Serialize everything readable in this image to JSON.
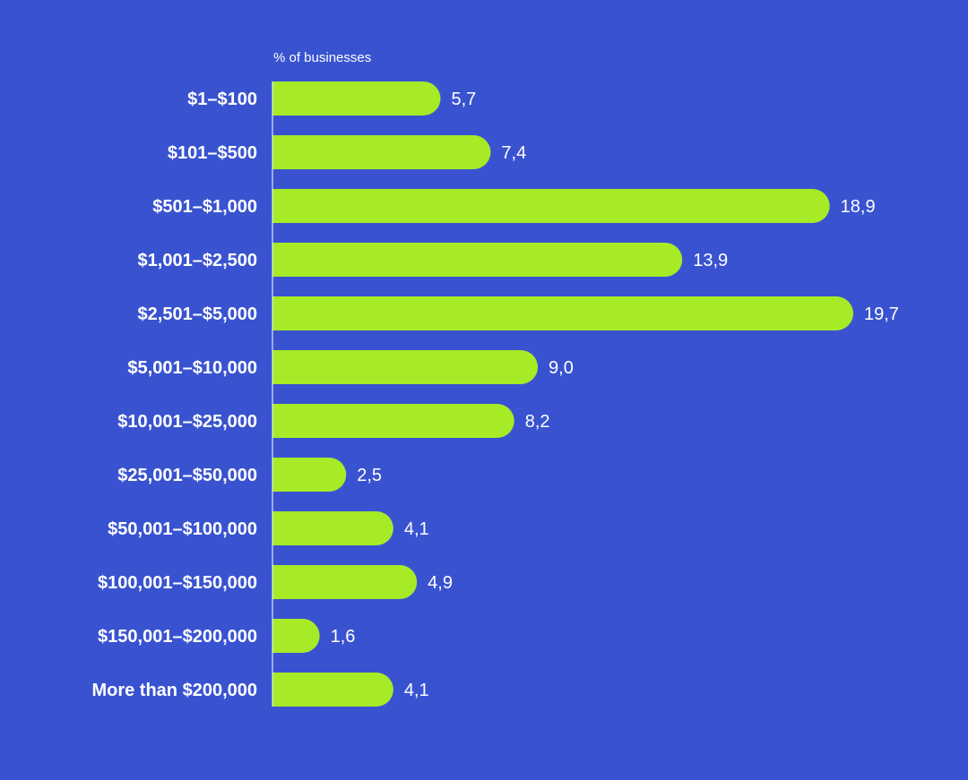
{
  "colors": {
    "background": "#3953D0",
    "bar": "#A6EB26",
    "axis": "#FFFFFF",
    "text": "#FFFFFF"
  },
  "chart_data": {
    "type": "bar",
    "orientation": "horizontal",
    "unit_label": "% of businesses",
    "categories": [
      "$1–$100",
      "$101–$500",
      "$501–$1,000",
      "$1,001–$2,500",
      "$2,501–$5,000",
      "$5,001–$10,000",
      "$10,001–$25,000",
      "$25,001–$50,000",
      "$50,001–$100,000",
      "$100,001–$150,000",
      "$150,001–$200,000",
      "More than $200,000"
    ],
    "values": [
      5.7,
      7.4,
      18.9,
      13.9,
      19.7,
      9.0,
      8.2,
      2.5,
      4.1,
      4.9,
      1.6,
      4.1
    ],
    "value_labels": [
      "5,7",
      "7,4",
      "18,9",
      "13,9",
      "19,7",
      "9,0",
      "8,2",
      "2,5",
      "4,1",
      "4,9",
      "1,6",
      "4,1"
    ],
    "xlim": [
      0,
      19.7
    ],
    "grid": false,
    "legend": "none"
  }
}
